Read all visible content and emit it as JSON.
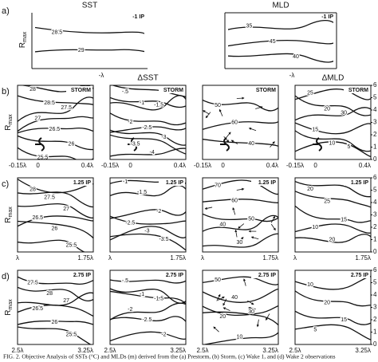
{
  "row_a": {
    "label": "a)",
    "panels": [
      {
        "title": "SST",
        "tag": "-1 IP",
        "contour_labels": [
          "28.5",
          "29"
        ],
        "x_label": "-λ"
      },
      {
        "title": "MLD",
        "tag": "-1 IP",
        "contour_labels": [
          "35",
          "45",
          "40"
        ],
        "x_label": "-λ"
      }
    ]
  },
  "y_axis_label": "R",
  "y_axis_subscript": "max",
  "right_axis_ticks": [
    "6",
    "5",
    "4",
    "3",
    "2",
    "1",
    "0"
  ],
  "rows": [
    {
      "label": "b)",
      "x_ticks": [
        "-0.15λ",
        "0",
        "0.4λ"
      ],
      "panels": [
        {
          "tag": "STORM",
          "contour_labels": [
            "28",
            "28.5",
            "27.5",
            "27",
            "26.5",
            "26",
            "25.5"
          ]
        },
        {
          "title": "ΔSST",
          "tag": "STORM",
          "contour_labels": [
            "-.5",
            "-1",
            "-1.5",
            "-2",
            "-2.5",
            "-3",
            "-3.5",
            "-4"
          ]
        },
        {
          "tag": "STORM",
          "contour_labels": [
            "50",
            "60",
            "40"
          ]
        },
        {
          "title": "ΔMLD",
          "tag": "STORM",
          "contour_labels": [
            "25",
            "20",
            "30",
            "15",
            "10",
            "5"
          ]
        }
      ]
    },
    {
      "label": "c)",
      "x_ticks": [
        "λ",
        "1.75λ"
      ],
      "panels": [
        {
          "tag": "1.25 IP",
          "contour_labels": [
            "28",
            "27.5",
            "27",
            "26.5",
            "26",
            "25.5"
          ]
        },
        {
          "tag": "1.25 IP",
          "contour_labels": [
            "-1",
            "-1.5",
            "-2",
            "-2.5",
            "-3",
            "-3.5"
          ]
        },
        {
          "tag": "1.25 IP",
          "contour_labels": [
            "70",
            "60",
            "50",
            "40",
            "30"
          ]
        },
        {
          "tag": "1.25 IP",
          "contour_labels": [
            "20",
            "25",
            "15",
            "10",
            "20"
          ]
        }
      ]
    },
    {
      "label": "d)",
      "x_ticks": [
        "2.5λ",
        "3.25λ"
      ],
      "panels": [
        {
          "tag": "2.75 IP",
          "contour_labels": [
            "27.5",
            "28",
            "27",
            "26.5",
            "26",
            "25.5"
          ]
        },
        {
          "tag": "2.75 IP",
          "contour_labels": [
            "-.5",
            "-1",
            "-1.5",
            "-2",
            "-2.5",
            "-2"
          ]
        },
        {
          "tag": "2.75 IP",
          "contour_labels": [
            "50",
            "40",
            "30",
            "20",
            "10"
          ]
        },
        {
          "tag": "2.75 IP",
          "contour_labels": [
            "10",
            "20",
            "15",
            "5"
          ]
        }
      ]
    }
  ],
  "caption": "FIG. 2. Objective Analysis of SSTs (°C) and MLDs (m) derived from the (a) Prestorm, (b) Storm, (c) Wake 1, and (d) Wake 2 observations"
}
